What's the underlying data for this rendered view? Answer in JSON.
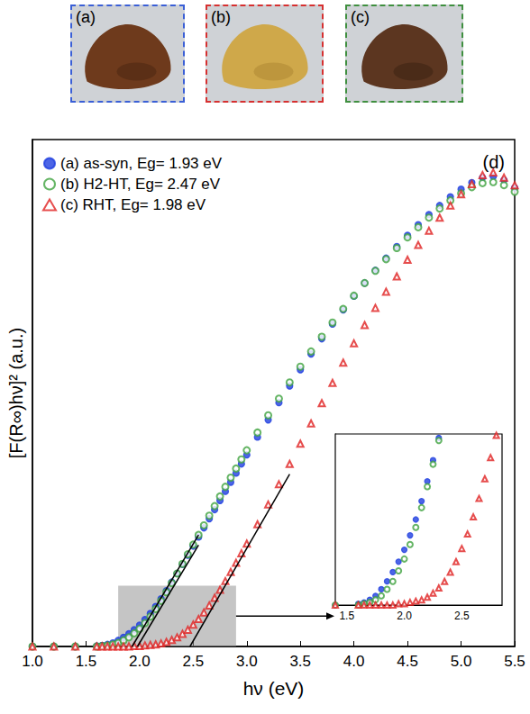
{
  "photos": [
    {
      "label": "(a)"
    },
    {
      "label": "(b)"
    },
    {
      "label": "(c)"
    }
  ],
  "chart_data": {
    "type": "scatter",
    "panel_label": "(d)",
    "x_label": "hν (eV)",
    "y_label": "[F(R∞)hν]² (a.u.)",
    "xlim": [
      1.0,
      5.5
    ],
    "xticks": [
      {
        "value": 1,
        "label": "1.0"
      },
      1.5,
      {
        "value": 2,
        "label": "2.0"
      },
      2.5,
      {
        "value": 3,
        "label": "3.0"
      },
      3.5,
      {
        "value": 4,
        "label": "4.0"
      },
      4.5,
      {
        "value": 5,
        "label": "5.0"
      },
      5.5
    ],
    "ylim": [
      0,
      1
    ],
    "tick_labels": "x",
    "grid": false,
    "legend": "upper left",
    "x": [
      1.0,
      1.2,
      1.4,
      1.6,
      1.65,
      1.7,
      1.75,
      1.8,
      1.85,
      1.9,
      1.95,
      2.0,
      2.05,
      2.1,
      2.15,
      2.2,
      2.25,
      2.3,
      2.35,
      2.4,
      2.45,
      2.5,
      2.55,
      2.6,
      2.65,
      2.7,
      2.75,
      2.8,
      2.85,
      2.9,
      2.95,
      3.0,
      3.1,
      3.2,
      3.3,
      3.4,
      3.5,
      3.6,
      3.7,
      3.8,
      3.9,
      4.0,
      4.1,
      4.2,
      4.3,
      4.4,
      4.5,
      4.6,
      4.7,
      4.8,
      4.9,
      5.0,
      5.1,
      5.2,
      5.3,
      5.4,
      5.5
    ],
    "series": [
      {
        "name": "(a) as-syn, Eg= 1.93 eV",
        "color": "#1f3fe0",
        "marker": "filled_circle",
        "values": [
          0,
          0,
          0,
          0.001,
          0.002,
          0.004,
          0.007,
          0.012,
          0.018,
          0.025,
          0.033,
          0.042,
          0.053,
          0.065,
          0.079,
          0.094,
          0.11,
          0.127,
          0.144,
          0.162,
          0.18,
          0.198,
          0.216,
          0.234,
          0.252,
          0.27,
          0.288,
          0.306,
          0.324,
          0.342,
          0.36,
          0.378,
          0.413,
          0.447,
          0.481,
          0.514,
          0.546,
          0.577,
          0.607,
          0.636,
          0.664,
          0.691,
          0.717,
          0.742,
          0.766,
          0.789,
          0.811,
          0.832,
          0.852,
          0.87,
          0.887,
          0.902,
          0.915,
          0.925,
          0.927,
          0.92,
          0.905
        ]
      },
      {
        "name": "(b) H2-HT, Eg= 2.47 eV",
        "color": "#3fa33f",
        "marker": "open_circle",
        "values": [
          0,
          0,
          0,
          0,
          0.001,
          0.002,
          0.004,
          0.007,
          0.012,
          0.018,
          0.026,
          0.035,
          0.046,
          0.059,
          0.074,
          0.09,
          0.107,
          0.125,
          0.144,
          0.163,
          0.182,
          0.201,
          0.22,
          0.239,
          0.258,
          0.277,
          0.296,
          0.315,
          0.333,
          0.351,
          0.369,
          0.387,
          0.422,
          0.456,
          0.489,
          0.521,
          0.552,
          0.582,
          0.611,
          0.639,
          0.666,
          0.692,
          0.717,
          0.741,
          0.764,
          0.786,
          0.807,
          0.827,
          0.846,
          0.864,
          0.88,
          0.894,
          0.906,
          0.914,
          0.916,
          0.91,
          0.897
        ]
      },
      {
        "name": "(c) RHT, Eg= 1.98 eV",
        "color": "#e02020",
        "marker": "open_triangle",
        "values": [
          0,
          0,
          0,
          0,
          0,
          0,
          0,
          0,
          0,
          0,
          0.001,
          0.001,
          0.002,
          0.003,
          0.004,
          0.006,
          0.009,
          0.013,
          0.018,
          0.025,
          0.033,
          0.043,
          0.054,
          0.067,
          0.081,
          0.096,
          0.112,
          0.129,
          0.147,
          0.165,
          0.184,
          0.203,
          0.241,
          0.28,
          0.32,
          0.36,
          0.4,
          0.44,
          0.48,
          0.52,
          0.56,
          0.598,
          0.634,
          0.668,
          0.7,
          0.73,
          0.763,
          0.792,
          0.82,
          0.846,
          0.87,
          0.892,
          0.912,
          0.93,
          0.935,
          0.925,
          0.91
        ]
      }
    ],
    "tangents": [
      {
        "x": [
          1.93,
          2.55
        ],
        "y": [
          0,
          0.22
        ]
      },
      {
        "x": [
          1.98,
          2.55
        ],
        "y": [
          0,
          0.2
        ]
      },
      {
        "x": [
          2.47,
          3.4
        ],
        "y": [
          0,
          0.34
        ]
      }
    ],
    "zoom_box": {
      "x": [
        1.8,
        2.9
      ],
      "y": [
        0,
        0.12
      ]
    },
    "inset": {
      "xlim": [
        1.4,
        2.85
      ],
      "xticks": [
        1.5,
        {
          "value": 2,
          "label": "2.0"
        },
        2.5
      ],
      "ylim": [
        0,
        0.13
      ]
    }
  }
}
